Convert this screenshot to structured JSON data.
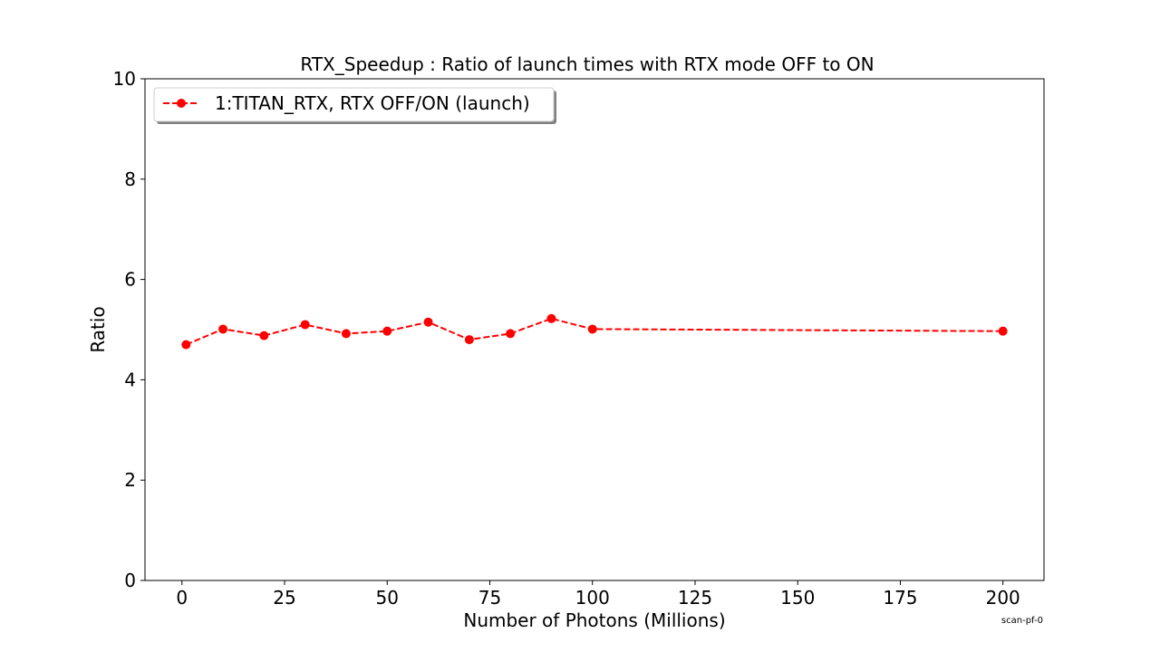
{
  "chart_data": {
    "type": "line",
    "title": "RTX_Speedup : Ratio of launch times with RTX mode OFF to ON",
    "xlabel": "Number of Photons (Millions)",
    "ylabel": "Ratio",
    "xlim": [
      -9,
      210
    ],
    "ylim": [
      0,
      10
    ],
    "xticks": [
      0,
      25,
      50,
      75,
      100,
      125,
      150,
      175,
      200
    ],
    "yticks": [
      0,
      2,
      4,
      6,
      8,
      10
    ],
    "grid": false,
    "legend_position": "top-left",
    "series": [
      {
        "name": "1:TITAN_RTX, RTX OFF/ON (launch)",
        "color": "#ff0000",
        "line_style": "dashed",
        "marker": "circle",
        "x": [
          1,
          10,
          20,
          30,
          40,
          50,
          60,
          70,
          80,
          90,
          100,
          200
        ],
        "y": [
          4.7,
          5.01,
          4.88,
          5.1,
          4.92,
          4.97,
          5.15,
          4.8,
          4.92,
          5.22,
          5.01,
          4.97
        ]
      }
    ]
  },
  "footer_tag": "scan-pf-0"
}
